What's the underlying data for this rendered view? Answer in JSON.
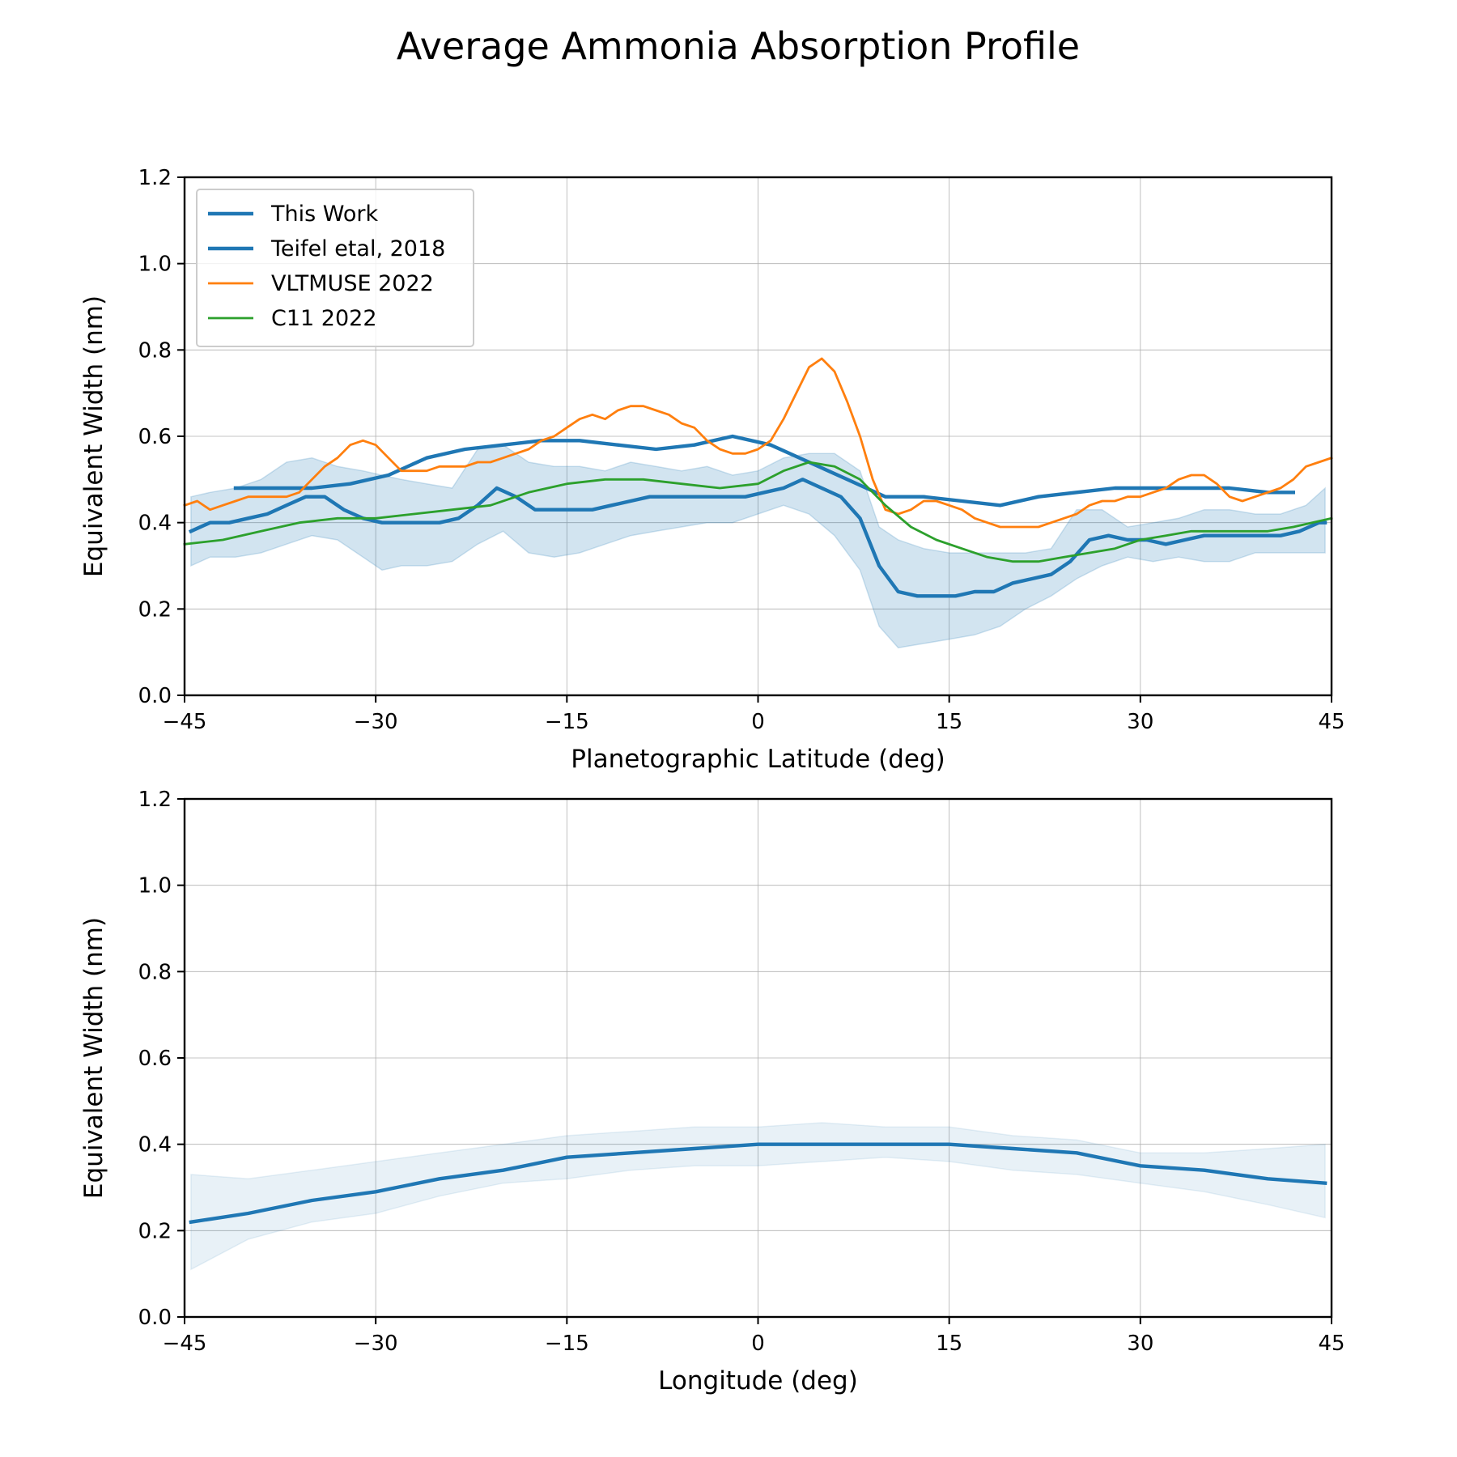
{
  "figure": {
    "title": "Average Ammonia Absorption Profile"
  },
  "chart_data": [
    {
      "type": "line",
      "xlabel": "Planetographic Latitude (deg)",
      "ylabel": "Equivalent Width (nm)",
      "xlim": [
        -45,
        45
      ],
      "ylim": [
        0,
        1.2
      ],
      "xticks": [
        -45,
        -30,
        -15,
        0,
        15,
        30,
        45
      ],
      "xtick_labels": [
        "−45",
        "−30",
        "−15",
        "0",
        "15",
        "30",
        "45"
      ],
      "yticks": [
        0.0,
        0.2,
        0.4,
        0.6,
        0.8,
        1.0,
        1.2
      ],
      "ytick_labels": [
        "0.0",
        "0.2",
        "0.4",
        "0.6",
        "0.8",
        "1.0",
        "1.2"
      ],
      "grid": true,
      "legend": "upper-left",
      "band": {
        "color": "#1f77b4",
        "opacity": 0.2,
        "x": [
          -44.5,
          -43,
          -41,
          -39,
          -37,
          -35,
          -33,
          -31,
          -29.5,
          -28,
          -26,
          -24,
          -22,
          -20,
          -18,
          -16,
          -14,
          -12,
          -10,
          -8,
          -6,
          -4,
          -2,
          0,
          2,
          4,
          6,
          8,
          9.5,
          11,
          13,
          15,
          17,
          19,
          21,
          23,
          25,
          27,
          29,
          31,
          33,
          35,
          37,
          39,
          41,
          43,
          44.5
        ],
        "upper": [
          0.46,
          0.47,
          0.48,
          0.5,
          0.54,
          0.55,
          0.53,
          0.52,
          0.51,
          0.5,
          0.49,
          0.48,
          0.57,
          0.58,
          0.54,
          0.53,
          0.53,
          0.52,
          0.54,
          0.53,
          0.52,
          0.53,
          0.51,
          0.52,
          0.55,
          0.56,
          0.56,
          0.52,
          0.39,
          0.36,
          0.34,
          0.33,
          0.33,
          0.33,
          0.33,
          0.34,
          0.43,
          0.43,
          0.39,
          0.4,
          0.41,
          0.43,
          0.43,
          0.42,
          0.42,
          0.44,
          0.48
        ],
        "lower": [
          0.3,
          0.32,
          0.32,
          0.33,
          0.35,
          0.37,
          0.36,
          0.32,
          0.29,
          0.3,
          0.3,
          0.31,
          0.35,
          0.38,
          0.33,
          0.32,
          0.33,
          0.35,
          0.37,
          0.38,
          0.39,
          0.4,
          0.4,
          0.42,
          0.44,
          0.42,
          0.37,
          0.29,
          0.16,
          0.11,
          0.12,
          0.13,
          0.14,
          0.16,
          0.2,
          0.23,
          0.27,
          0.3,
          0.32,
          0.31,
          0.32,
          0.31,
          0.31,
          0.33,
          0.33,
          0.33,
          0.33
        ]
      },
      "series": [
        {
          "name": "This Work",
          "color": "#1f77b4",
          "width": 4.4,
          "x": [
            -44.5,
            -43,
            -41.5,
            -40,
            -38.5,
            -37,
            -35.5,
            -34,
            -32.5,
            -31,
            -29.5,
            -28,
            -26.5,
            -25,
            -23.5,
            -22,
            -20.5,
            -19,
            -17.5,
            -16,
            -14.5,
            -13,
            -11.5,
            -10,
            -8.5,
            -7,
            -5.5,
            -4,
            -2.5,
            -1,
            0.5,
            2,
            3.5,
            5,
            6.5,
            8,
            9.5,
            11,
            12.5,
            14,
            15.5,
            17,
            18.5,
            20,
            21.5,
            23,
            24.5,
            26,
            27.5,
            29,
            30.5,
            32,
            33.5,
            35,
            36.5,
            38,
            39.5,
            41,
            42.5,
            44,
            44.5
          ],
          "y": [
            0.38,
            0.4,
            0.4,
            0.41,
            0.42,
            0.44,
            0.46,
            0.46,
            0.43,
            0.41,
            0.4,
            0.4,
            0.4,
            0.4,
            0.41,
            0.44,
            0.48,
            0.46,
            0.43,
            0.43,
            0.43,
            0.43,
            0.44,
            0.45,
            0.46,
            0.46,
            0.46,
            0.46,
            0.46,
            0.46,
            0.47,
            0.48,
            0.5,
            0.48,
            0.46,
            0.41,
            0.3,
            0.24,
            0.23,
            0.23,
            0.23,
            0.24,
            0.24,
            0.26,
            0.27,
            0.28,
            0.31,
            0.36,
            0.37,
            0.36,
            0.36,
            0.35,
            0.36,
            0.37,
            0.37,
            0.37,
            0.37,
            0.37,
            0.38,
            0.4,
            0.4
          ]
        },
        {
          "name": "Teifel etal, 2018",
          "color": "#1f77b4",
          "width": 4.4,
          "x": [
            -41,
            -38,
            -35,
            -32,
            -29,
            -26,
            -23,
            -20,
            -17,
            -14,
            -11,
            -8,
            -5,
            -2,
            1,
            4,
            7,
            10,
            13,
            16,
            19,
            22,
            25,
            28,
            31,
            34,
            37,
            40,
            42
          ],
          "y": [
            0.48,
            0.48,
            0.48,
            0.49,
            0.51,
            0.55,
            0.57,
            0.58,
            0.59,
            0.59,
            0.58,
            0.57,
            0.58,
            0.6,
            0.58,
            0.54,
            0.5,
            0.46,
            0.46,
            0.45,
            0.44,
            0.46,
            0.47,
            0.48,
            0.48,
            0.48,
            0.48,
            0.47,
            0.47
          ]
        },
        {
          "name": "VLTMUSE 2022",
          "color": "#ff7f0e",
          "width": 2.8,
          "x": [
            -45,
            -44,
            -43,
            -42,
            -41,
            -40,
            -39,
            -38,
            -37,
            -36,
            -35,
            -34,
            -33,
            -32,
            -31,
            -30,
            -29,
            -28,
            -27,
            -26,
            -25,
            -24,
            -23,
            -22,
            -21,
            -20,
            -19,
            -18,
            -17,
            -16,
            -15,
            -14,
            -13,
            -12,
            -11,
            -10,
            -9,
            -8,
            -7,
            -6,
            -5,
            -4,
            -3,
            -2,
            -1,
            0,
            1,
            2,
            3,
            4,
            5,
            6,
            7,
            8,
            9,
            10,
            11,
            12,
            13,
            14,
            15,
            16,
            17,
            18,
            19,
            20,
            21,
            22,
            23,
            24,
            25,
            26,
            27,
            28,
            29,
            30,
            31,
            32,
            33,
            34,
            35,
            36,
            37,
            38,
            39,
            40,
            41,
            42,
            43,
            44,
            45
          ],
          "y": [
            0.44,
            0.45,
            0.43,
            0.44,
            0.45,
            0.46,
            0.46,
            0.46,
            0.46,
            0.47,
            0.5,
            0.53,
            0.55,
            0.58,
            0.59,
            0.58,
            0.55,
            0.52,
            0.52,
            0.52,
            0.53,
            0.53,
            0.53,
            0.54,
            0.54,
            0.55,
            0.56,
            0.57,
            0.59,
            0.6,
            0.62,
            0.64,
            0.65,
            0.64,
            0.66,
            0.67,
            0.67,
            0.66,
            0.65,
            0.63,
            0.62,
            0.59,
            0.57,
            0.56,
            0.56,
            0.57,
            0.59,
            0.64,
            0.7,
            0.76,
            0.78,
            0.75,
            0.68,
            0.6,
            0.5,
            0.43,
            0.42,
            0.43,
            0.45,
            0.45,
            0.44,
            0.43,
            0.41,
            0.4,
            0.39,
            0.39,
            0.39,
            0.39,
            0.4,
            0.41,
            0.42,
            0.44,
            0.45,
            0.45,
            0.46,
            0.46,
            0.47,
            0.48,
            0.5,
            0.51,
            0.51,
            0.49,
            0.46,
            0.45,
            0.46,
            0.47,
            0.48,
            0.5,
            0.53,
            0.54,
            0.55
          ]
        },
        {
          "name": "C11 2022",
          "color": "#2ca02c",
          "width": 2.8,
          "x": [
            -45,
            -42,
            -39,
            -36,
            -33,
            -30,
            -27,
            -24,
            -21,
            -18,
            -15,
            -12,
            -9,
            -6,
            -3,
            0,
            2,
            4,
            6,
            8,
            10,
            12,
            14,
            16,
            18,
            20,
            22,
            24,
            26,
            28,
            30,
            32,
            34,
            36,
            38,
            40,
            42,
            45
          ],
          "y": [
            0.35,
            0.36,
            0.38,
            0.4,
            0.41,
            0.41,
            0.42,
            0.43,
            0.44,
            0.47,
            0.49,
            0.5,
            0.5,
            0.49,
            0.48,
            0.49,
            0.52,
            0.54,
            0.53,
            0.5,
            0.44,
            0.39,
            0.36,
            0.34,
            0.32,
            0.31,
            0.31,
            0.32,
            0.33,
            0.34,
            0.36,
            0.37,
            0.38,
            0.38,
            0.38,
            0.38,
            0.39,
            0.41
          ]
        }
      ]
    },
    {
      "type": "line",
      "xlabel": "Longitude (deg)",
      "ylabel": "Equivalent Width (nm)",
      "xlim": [
        -45,
        45
      ],
      "ylim": [
        0,
        1.2
      ],
      "xticks": [
        -45,
        -30,
        -15,
        0,
        15,
        30,
        45
      ],
      "xtick_labels": [
        "−45",
        "−30",
        "−15",
        "0",
        "15",
        "30",
        "45"
      ],
      "yticks": [
        0.0,
        0.2,
        0.4,
        0.6,
        0.8,
        1.0,
        1.2
      ],
      "ytick_labels": [
        "0.0",
        "0.2",
        "0.4",
        "0.6",
        "0.8",
        "1.0",
        "1.2"
      ],
      "grid": true,
      "band": {
        "color": "#1f77b4",
        "opacity": 0.1,
        "x": [
          -44.5,
          -40,
          -35,
          -30,
          -25,
          -20,
          -15,
          -10,
          -5,
          0,
          5,
          10,
          15,
          20,
          25,
          30,
          35,
          40,
          44.5
        ],
        "upper": [
          0.33,
          0.32,
          0.34,
          0.36,
          0.38,
          0.4,
          0.42,
          0.43,
          0.44,
          0.44,
          0.45,
          0.44,
          0.44,
          0.42,
          0.41,
          0.38,
          0.38,
          0.39,
          0.4
        ],
        "lower": [
          0.11,
          0.18,
          0.22,
          0.24,
          0.28,
          0.31,
          0.32,
          0.34,
          0.35,
          0.35,
          0.36,
          0.37,
          0.36,
          0.34,
          0.33,
          0.31,
          0.29,
          0.26,
          0.23
        ]
      },
      "series": [
        {
          "name": "",
          "color": "#1f77b4",
          "width": 4.4,
          "x": [
            -44.5,
            -40,
            -35,
            -30,
            -25,
            -20,
            -15,
            -10,
            -5,
            0,
            5,
            10,
            15,
            20,
            25,
            30,
            35,
            40,
            44.5
          ],
          "y": [
            0.22,
            0.24,
            0.27,
            0.29,
            0.32,
            0.34,
            0.37,
            0.38,
            0.39,
            0.4,
            0.4,
            0.4,
            0.4,
            0.39,
            0.38,
            0.35,
            0.34,
            0.32,
            0.31
          ]
        }
      ]
    }
  ]
}
